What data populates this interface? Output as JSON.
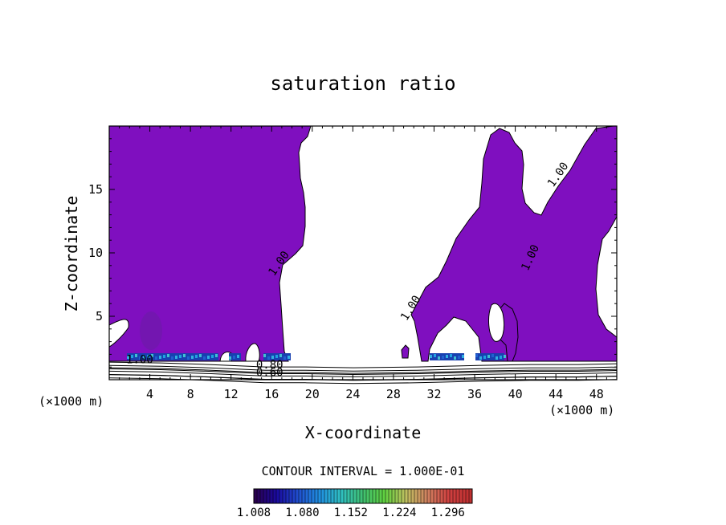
{
  "chart_data": {
    "type": "contour",
    "title": "saturation ratio",
    "xlabel": "X-coordinate",
    "ylabel": "Z-coordinate",
    "x_unit": "(×1000 m)",
    "x_ticks": [
      4,
      8,
      12,
      16,
      20,
      24,
      28,
      32,
      36,
      40,
      44,
      48
    ],
    "y_ticks": [
      5,
      10,
      15
    ],
    "xlim": [
      0,
      50
    ],
    "ylim": [
      0,
      20
    ],
    "contour_interval_text": "CONTOUR INTERVAL = 1.000E-01",
    "contour_labels": [
      {
        "text": "1.00",
        "x": 17.0,
        "y": 9.0,
        "angle": -55
      },
      {
        "text": "1.00",
        "x": 30.0,
        "y": 5.5,
        "angle": -58
      },
      {
        "text": "1.00",
        "x": 41.8,
        "y": 9.5,
        "angle": -65
      },
      {
        "text": "1.00",
        "x": 44.5,
        "y": 16.0,
        "angle": -55
      },
      {
        "text": "1.00",
        "x": 3.0,
        "y": 1.3,
        "angle": 0
      },
      {
        "text": "0.80",
        "x": 15.8,
        "y": 0.9,
        "angle": 0
      },
      {
        "text": "0.60",
        "x": 15.8,
        "y": 0.3,
        "angle": 0
      }
    ],
    "filled_region_color": "#7f0fbf",
    "colorbar": {
      "min": 1.008,
      "max": 1.332,
      "tick_labels": [
        "1.008",
        "1.080",
        "1.152",
        "1.224",
        "1.296"
      ],
      "colors": [
        "#2a0050",
        "#1a0aa0",
        "#2050d0",
        "#2090e0",
        "#30c0c0",
        "#40c070",
        "#60d040",
        "#c0c060",
        "#d08060",
        "#d04040",
        "#c03030"
      ]
    }
  }
}
